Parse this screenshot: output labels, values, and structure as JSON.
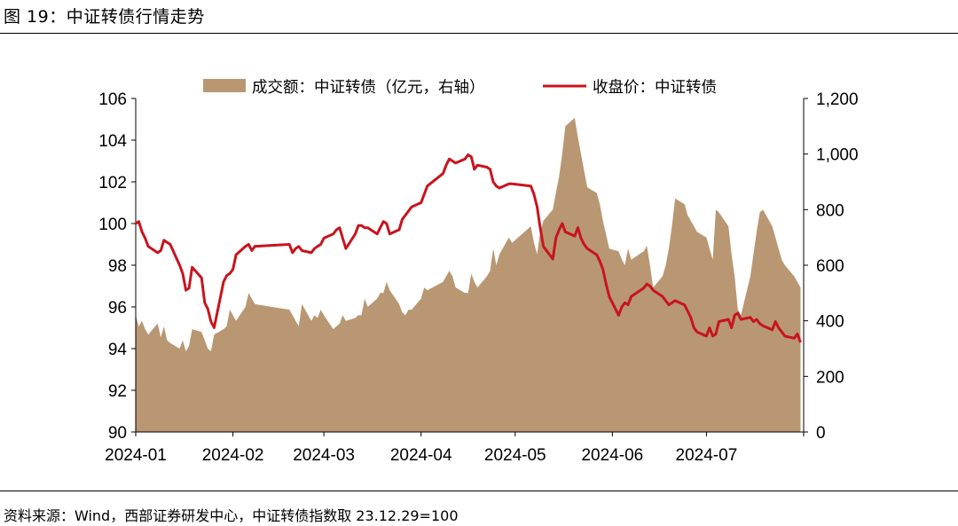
{
  "figure": {
    "title": "图 19：中证转债行情走势",
    "source": "资料来源：Wind，西部证券研发中心，中证转债指数取 23.12.29=100"
  },
  "colors": {
    "area": "#b99772",
    "line": "#c8141e"
  },
  "chart_data": {
    "type": "line+area",
    "legend": [
      {
        "label": "成交额：中证转债（亿元，右轴）",
        "kind": "area",
        "color": "#b99772"
      },
      {
        "label": "收盘价：中证转债",
        "kind": "line",
        "color": "#c8141e"
      }
    ],
    "legend_position": "top",
    "grid": false,
    "x_ticks": [
      "2024-01",
      "2024-02",
      "2024-03",
      "2024-04",
      "2024-05",
      "2024-06",
      "2024-07"
    ],
    "x_range": [
      "2024-01-01",
      "2024-08-01"
    ],
    "left_axis": {
      "ylim": [
        90,
        106
      ],
      "ticks": [
        "90",
        "92",
        "94",
        "96",
        "98",
        "100",
        "102",
        "104",
        "106"
      ]
    },
    "right_axis": {
      "ylim": [
        0,
        1200
      ],
      "ticks": [
        "0",
        "200",
        "400",
        "600",
        "800",
        "1,000",
        "1,200"
      ]
    },
    "series": [
      {
        "name": "成交额：中证转债（亿元，右轴）",
        "axis": "right",
        "x": [
          "2024-01-01",
          "2024-01-02",
          "2024-01-03",
          "2024-01-04",
          "2024-01-05",
          "2024-01-08",
          "2024-01-09",
          "2024-01-10",
          "2024-01-11",
          "2024-01-12",
          "2024-01-15",
          "2024-01-16",
          "2024-01-17",
          "2024-01-18",
          "2024-01-19",
          "2024-01-22",
          "2024-01-23",
          "2024-01-24",
          "2024-01-25",
          "2024-01-26",
          "2024-01-29",
          "2024-01-30",
          "2024-01-31",
          "2024-02-01",
          "2024-02-02",
          "2024-02-05",
          "2024-02-06",
          "2024-02-07",
          "2024-02-08",
          "2024-02-19",
          "2024-02-20",
          "2024-02-21",
          "2024-02-22",
          "2024-02-23",
          "2024-02-26",
          "2024-02-27",
          "2024-02-28",
          "2024-02-29",
          "2024-03-01",
          "2024-03-04",
          "2024-03-05",
          "2024-03-06",
          "2024-03-07",
          "2024-03-08",
          "2024-03-11",
          "2024-03-12",
          "2024-03-13",
          "2024-03-14",
          "2024-03-15",
          "2024-03-18",
          "2024-03-19",
          "2024-03-20",
          "2024-03-21",
          "2024-03-22",
          "2024-03-25",
          "2024-03-26",
          "2024-03-27",
          "2024-03-28",
          "2024-03-29",
          "2024-04-01",
          "2024-04-02",
          "2024-04-03",
          "2024-04-08",
          "2024-04-09",
          "2024-04-10",
          "2024-04-11",
          "2024-04-12",
          "2024-04-15",
          "2024-04-16",
          "2024-04-17",
          "2024-04-18",
          "2024-04-19",
          "2024-04-22",
          "2024-04-23",
          "2024-04-24",
          "2024-04-25",
          "2024-04-26",
          "2024-04-29",
          "2024-04-30",
          "2024-05-06",
          "2024-05-07",
          "2024-05-08",
          "2024-05-09",
          "2024-05-10",
          "2024-05-13",
          "2024-05-14",
          "2024-05-15",
          "2024-05-16",
          "2024-05-17",
          "2024-05-20",
          "2024-05-21",
          "2024-05-22",
          "2024-05-23",
          "2024-05-24",
          "2024-05-27",
          "2024-05-28",
          "2024-05-29",
          "2024-05-30",
          "2024-05-31",
          "2024-06-03",
          "2024-06-04",
          "2024-06-05",
          "2024-06-06",
          "2024-06-07",
          "2024-06-11",
          "2024-06-12",
          "2024-06-13",
          "2024-06-14",
          "2024-06-17",
          "2024-06-18",
          "2024-06-19",
          "2024-06-20",
          "2024-06-21",
          "2024-06-24",
          "2024-06-25",
          "2024-06-26",
          "2024-06-27",
          "2024-06-28",
          "2024-07-01",
          "2024-07-02",
          "2024-07-03",
          "2024-07-04",
          "2024-07-05",
          "2024-07-08",
          "2024-07-09",
          "2024-07-10",
          "2024-07-11",
          "2024-07-12",
          "2024-07-15",
          "2024-07-16",
          "2024-07-17",
          "2024-07-18",
          "2024-07-19",
          "2024-07-22",
          "2024-07-23",
          "2024-07-24",
          "2024-07-25",
          "2024-07-26",
          "2024-07-29",
          "2024-07-30",
          "2024-07-31"
        ],
        "values": [
          420,
          380,
          400,
          370,
          350,
          390,
          340,
          380,
          330,
          320,
          300,
          330,
          290,
          310,
          370,
          360,
          330,
          300,
          290,
          350,
          370,
          380,
          440,
          420,
          400,
          450,
          500,
          480,
          460,
          440,
          420,
          400,
          380,
          460,
          400,
          420,
          410,
          440,
          420,
          370,
          380,
          390,
          420,
          400,
          410,
          420,
          420,
          480,
          450,
          480,
          500,
          500,
          540,
          510,
          460,
          430,
          420,
          440,
          440,
          480,
          520,
          510,
          540,
          560,
          580,
          560,
          520,
          500,
          500,
          570,
          540,
          520,
          560,
          580,
          660,
          600,
          640,
          700,
          680,
          740,
          680,
          640,
          720,
          760,
          800,
          860,
          920,
          1000,
          1100,
          1130,
          1060,
          1000,
          940,
          880,
          860,
          820,
          760,
          710,
          660,
          650,
          620,
          600,
          660,
          620,
          650,
          670,
          600,
          520,
          560,
          600,
          660,
          740,
          840,
          820,
          780,
          760,
          740,
          720,
          700,
          660,
          620,
          800,
          790,
          740,
          640,
          560,
          440,
          420,
          560,
          640,
          720,
          790,
          800,
          740,
          700,
          660,
          620,
          600,
          560,
          540,
          520
        ]
      },
      {
        "name": "收盘价：中证转债",
        "axis": "left",
        "x": [
          "2024-01-01",
          "2024-01-02",
          "2024-01-03",
          "2024-01-04",
          "2024-01-05",
          "2024-01-08",
          "2024-01-09",
          "2024-01-10",
          "2024-01-11",
          "2024-01-12",
          "2024-01-15",
          "2024-01-16",
          "2024-01-17",
          "2024-01-18",
          "2024-01-19",
          "2024-01-22",
          "2024-01-23",
          "2024-01-24",
          "2024-01-25",
          "2024-01-26",
          "2024-01-29",
          "2024-01-30",
          "2024-01-31",
          "2024-02-01",
          "2024-02-02",
          "2024-02-05",
          "2024-02-06",
          "2024-02-07",
          "2024-02-08",
          "2024-02-19",
          "2024-02-20",
          "2024-02-21",
          "2024-02-22",
          "2024-02-23",
          "2024-02-26",
          "2024-02-27",
          "2024-02-28",
          "2024-02-29",
          "2024-03-01",
          "2024-03-04",
          "2024-03-05",
          "2024-03-06",
          "2024-03-07",
          "2024-03-08",
          "2024-03-11",
          "2024-03-12",
          "2024-03-13",
          "2024-03-14",
          "2024-03-15",
          "2024-03-18",
          "2024-03-19",
          "2024-03-20",
          "2024-03-21",
          "2024-03-22",
          "2024-03-25",
          "2024-03-26",
          "2024-03-27",
          "2024-03-28",
          "2024-03-29",
          "2024-04-01",
          "2024-04-02",
          "2024-04-03",
          "2024-04-08",
          "2024-04-09",
          "2024-04-10",
          "2024-04-11",
          "2024-04-12",
          "2024-04-15",
          "2024-04-16",
          "2024-04-17",
          "2024-04-18",
          "2024-04-19",
          "2024-04-22",
          "2024-04-23",
          "2024-04-24",
          "2024-04-25",
          "2024-04-26",
          "2024-04-29",
          "2024-04-30",
          "2024-05-06",
          "2024-05-07",
          "2024-05-08",
          "2024-05-09",
          "2024-05-10",
          "2024-05-13",
          "2024-05-14",
          "2024-05-15",
          "2024-05-16",
          "2024-05-17",
          "2024-05-20",
          "2024-05-21",
          "2024-05-22",
          "2024-05-23",
          "2024-05-24",
          "2024-05-27",
          "2024-05-28",
          "2024-05-29",
          "2024-05-30",
          "2024-05-31",
          "2024-06-03",
          "2024-06-04",
          "2024-06-05",
          "2024-06-06",
          "2024-06-07",
          "2024-06-11",
          "2024-06-12",
          "2024-06-13",
          "2024-06-14",
          "2024-06-17",
          "2024-06-18",
          "2024-06-19",
          "2024-06-20",
          "2024-06-21",
          "2024-06-24",
          "2024-06-25",
          "2024-06-26",
          "2024-06-27",
          "2024-06-28",
          "2024-07-01",
          "2024-07-02",
          "2024-07-03",
          "2024-07-04",
          "2024-07-05",
          "2024-07-08",
          "2024-07-09",
          "2024-07-10",
          "2024-07-11",
          "2024-07-12",
          "2024-07-15",
          "2024-07-16",
          "2024-07-17",
          "2024-07-18",
          "2024-07-19",
          "2024-07-22",
          "2024-07-23",
          "2024-07-24",
          "2024-07-25",
          "2024-07-26",
          "2024-07-29",
          "2024-07-30",
          "2024-07-31"
        ],
        "values": [
          100.0,
          100.1,
          99.6,
          99.3,
          98.9,
          98.6,
          98.7,
          99.2,
          99.1,
          99.0,
          98.0,
          97.6,
          96.8,
          96.9,
          97.9,
          97.4,
          96.2,
          95.9,
          95.3,
          95.0,
          97.2,
          97.5,
          97.6,
          97.8,
          98.5,
          98.9,
          99.0,
          98.7,
          98.9,
          99.0,
          98.6,
          98.8,
          98.9,
          98.7,
          98.6,
          98.8,
          98.9,
          99.0,
          99.3,
          99.5,
          99.7,
          99.8,
          99.3,
          98.8,
          99.5,
          99.9,
          99.9,
          99.8,
          99.8,
          99.5,
          99.8,
          100.1,
          100.0,
          99.5,
          99.7,
          100.2,
          100.4,
          100.6,
          100.8,
          101.0,
          101.4,
          101.8,
          102.4,
          102.8,
          103.1,
          103.0,
          102.9,
          103.1,
          103.3,
          103.2,
          102.6,
          102.8,
          102.7,
          102.6,
          102.0,
          101.8,
          101.7,
          101.9,
          101.9,
          101.8,
          101.4,
          100.8,
          99.8,
          98.9,
          98.3,
          99.3,
          99.7,
          100.0,
          99.6,
          99.4,
          99.8,
          99.3,
          99.0,
          98.8,
          98.5,
          98.2,
          97.8,
          97.1,
          96.5,
          95.6,
          96.0,
          96.2,
          96.1,
          96.5,
          96.9,
          97.1,
          97.0,
          96.8,
          96.5,
          96.3,
          96.1,
          96.2,
          96.3,
          96.1,
          95.8,
          95.5,
          95.0,
          94.8,
          94.6,
          95.0,
          94.6,
          94.7,
          95.3,
          95.4,
          95.0,
          95.6,
          95.7,
          95.4,
          95.5,
          95.3,
          95.4,
          95.2,
          95.1,
          94.9,
          95.3,
          95.0,
          94.8,
          94.6,
          94.5,
          94.7,
          94.3
        ]
      }
    ]
  }
}
